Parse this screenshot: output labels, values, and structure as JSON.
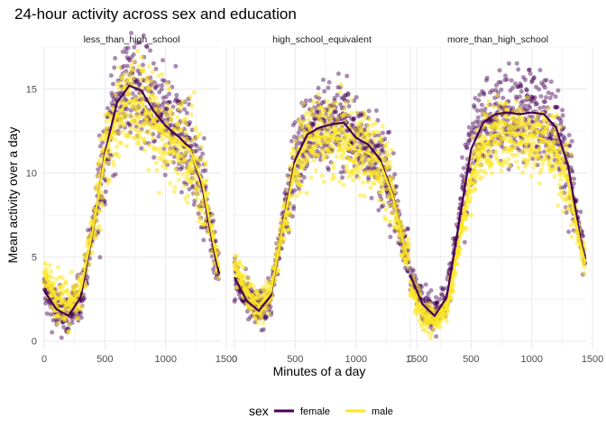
{
  "chart_data": {
    "type": "scatter",
    "title": "24-hour activity across sex and education",
    "xlabel": "Minutes of a day",
    "ylabel": "Mean activity over a day",
    "xlim": [
      -15,
      1455
    ],
    "ylim": [
      -0.5,
      17.5
    ],
    "x_ticks": [
      0,
      500,
      1000,
      1500
    ],
    "x_tick_labels": [
      "0",
      "500",
      "1000",
      "1500"
    ],
    "y_ticks": [
      0,
      5,
      10,
      15
    ],
    "y_tick_labels": [
      "0",
      "5",
      "10",
      "15"
    ],
    "grid": true,
    "legend": {
      "title": "sex",
      "position": "bottom"
    },
    "series": [
      {
        "name": "female",
        "color": "#440154"
      },
      {
        "name": "male",
        "color": "#FDE725"
      }
    ],
    "panels": [
      {
        "label": "less_than_high_school",
        "female_smooth": [
          [
            0,
            3.0
          ],
          [
            100,
            1.9
          ],
          [
            200,
            1.5
          ],
          [
            300,
            2.6
          ],
          [
            400,
            6.5
          ],
          [
            500,
            11.2
          ],
          [
            600,
            14.2
          ],
          [
            700,
            15.2
          ],
          [
            800,
            14.9
          ],
          [
            900,
            13.7
          ],
          [
            1000,
            12.8
          ],
          [
            1100,
            12.2
          ],
          [
            1200,
            11.5
          ],
          [
            1300,
            9.2
          ],
          [
            1400,
            5.3
          ],
          [
            1440,
            4.0
          ]
        ],
        "male_smooth": [
          [
            0,
            3.9
          ],
          [
            100,
            2.6
          ],
          [
            200,
            2.1
          ],
          [
            300,
            3.0
          ],
          [
            400,
            6.6
          ],
          [
            500,
            11.0
          ],
          [
            600,
            13.5
          ],
          [
            700,
            14.3
          ],
          [
            800,
            14.2
          ],
          [
            900,
            13.1
          ],
          [
            1000,
            12.2
          ],
          [
            1100,
            11.9
          ],
          [
            1200,
            11.4
          ],
          [
            1300,
            9.5
          ],
          [
            1400,
            5.6
          ],
          [
            1440,
            4.4
          ]
        ],
        "female_spread": 1.5,
        "male_spread": 1.4
      },
      {
        "label": "high_school_equivalent",
        "female_smooth": [
          [
            0,
            3.8
          ],
          [
            100,
            2.4
          ],
          [
            200,
            1.8
          ],
          [
            300,
            2.7
          ],
          [
            400,
            7.0
          ],
          [
            500,
            10.8
          ],
          [
            600,
            12.3
          ],
          [
            700,
            12.7
          ],
          [
            800,
            12.9
          ],
          [
            900,
            13.0
          ],
          [
            1000,
            12.1
          ],
          [
            1100,
            11.7
          ],
          [
            1200,
            10.8
          ],
          [
            1300,
            8.8
          ],
          [
            1400,
            5.6
          ],
          [
            1440,
            4.8
          ]
        ],
        "male_smooth": [
          [
            0,
            4.5
          ],
          [
            100,
            2.9
          ],
          [
            200,
            2.1
          ],
          [
            300,
            2.9
          ],
          [
            400,
            6.9
          ],
          [
            500,
            10.5
          ],
          [
            600,
            12.0
          ],
          [
            700,
            12.2
          ],
          [
            800,
            12.1
          ],
          [
            900,
            12.0
          ],
          [
            1000,
            11.4
          ],
          [
            1100,
            11.2
          ],
          [
            1200,
            10.6
          ],
          [
            1300,
            8.7
          ],
          [
            1400,
            5.6
          ],
          [
            1440,
            4.8
          ]
        ],
        "female_spread": 1.3,
        "male_spread": 1.2
      },
      {
        "label": "more_than_high_school",
        "female_smooth": [
          [
            0,
            3.9
          ],
          [
            100,
            2.2
          ],
          [
            200,
            1.5
          ],
          [
            300,
            2.6
          ],
          [
            400,
            7.0
          ],
          [
            500,
            11.4
          ],
          [
            600,
            13.0
          ],
          [
            700,
            13.5
          ],
          [
            800,
            13.6
          ],
          [
            900,
            13.5
          ],
          [
            1000,
            13.6
          ],
          [
            1100,
            13.5
          ],
          [
            1200,
            12.7
          ],
          [
            1300,
            10.4
          ],
          [
            1400,
            6.1
          ],
          [
            1440,
            4.9
          ]
        ],
        "male_smooth": [
          [
            0,
            3.2
          ],
          [
            100,
            1.6
          ],
          [
            200,
            1.1
          ],
          [
            300,
            2.0
          ],
          [
            400,
            5.9
          ],
          [
            500,
            9.7
          ],
          [
            600,
            11.6
          ],
          [
            700,
            12.3
          ],
          [
            800,
            12.4
          ],
          [
            900,
            12.3
          ],
          [
            1000,
            12.2
          ],
          [
            1100,
            12.0
          ],
          [
            1200,
            11.3
          ],
          [
            1300,
            9.4
          ],
          [
            1400,
            5.8
          ],
          [
            1440,
            4.7
          ]
        ],
        "female_spread": 1.3,
        "male_spread": 1.1
      }
    ]
  }
}
